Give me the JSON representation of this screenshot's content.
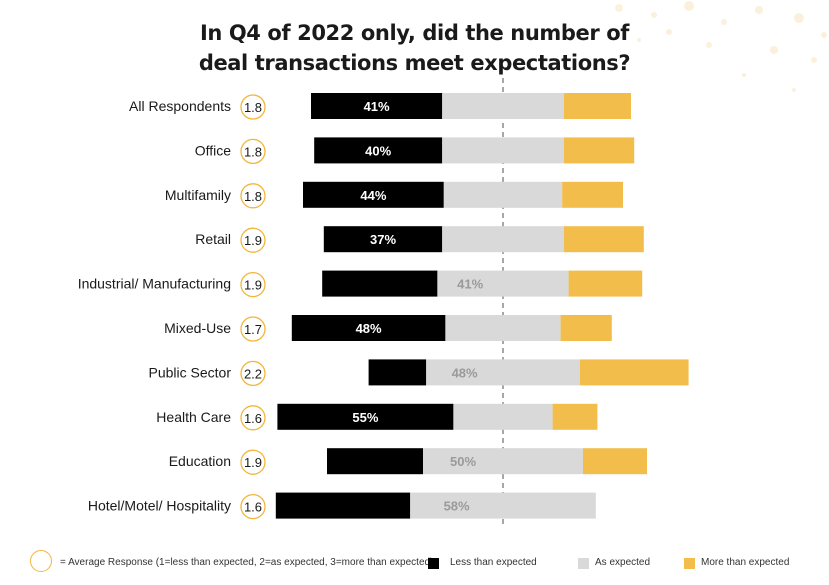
{
  "chart_data": {
    "type": "bar",
    "title_line1": "In Q4 of 2022 only, did the number of",
    "title_line2": "deal transactions meet expectations?",
    "categories": [
      "All Respondents",
      "Office",
      "Multifamily",
      "Retail",
      "Industrial/ Manufacturing",
      "Mixed-Use",
      "Public Sector",
      "Health Care",
      "Education",
      "Hotel/Motel/ Hospitality"
    ],
    "average_response": [
      "1.8",
      "1.8",
      "1.8",
      "1.9",
      "1.9",
      "1.7",
      "2.2",
      "1.6",
      "1.9",
      "1.6"
    ],
    "series": [
      {
        "name": "Less than expected",
        "color": "#000000",
        "values": [
          41,
          40,
          44,
          37,
          36,
          48,
          18,
          55,
          30,
          42
        ]
      },
      {
        "name": "As expected",
        "color": "#d9d9d9",
        "values": [
          38,
          38,
          37,
          38,
          41,
          36,
          48,
          31,
          50,
          58
        ]
      },
      {
        "name": "More than expected",
        "color": "#f2bd4b",
        "values": [
          21,
          22,
          19,
          25,
          23,
          16,
          34,
          14,
          20,
          0
        ]
      }
    ],
    "data_labels": [
      {
        "series": "Less than expected",
        "category_index": 0,
        "text": "41%"
      },
      {
        "series": "Less than expected",
        "category_index": 1,
        "text": "40%"
      },
      {
        "series": "Less than expected",
        "category_index": 2,
        "text": "44%"
      },
      {
        "series": "Less than expected",
        "category_index": 3,
        "text": "37%"
      },
      {
        "series": "As expected",
        "category_index": 4,
        "text": "41%"
      },
      {
        "series": "Less than expected",
        "category_index": 5,
        "text": "48%"
      },
      {
        "series": "As expected",
        "category_index": 6,
        "text": "48%"
      },
      {
        "series": "Less than expected",
        "category_index": 7,
        "text": "55%"
      },
      {
        "series": "As expected",
        "category_index": 8,
        "text": "50%"
      },
      {
        "series": "As expected",
        "category_index": 9,
        "text": "58%"
      }
    ],
    "layout_style": "diverging stacked bar centered on middle of 'As expected'"
  },
  "legend": {
    "avg_text": "= Average Response (1=less than expected, 2=as expected, 3=more than expected)",
    "less": "Less than expected",
    "as": "As expected",
    "more": "More than expected"
  },
  "colors": {
    "accent": "#f2bd4b",
    "ring": "#f2b63a",
    "less": "#000000",
    "as": "#d9d9d9",
    "label_on_gray": "#9a9a9a"
  }
}
